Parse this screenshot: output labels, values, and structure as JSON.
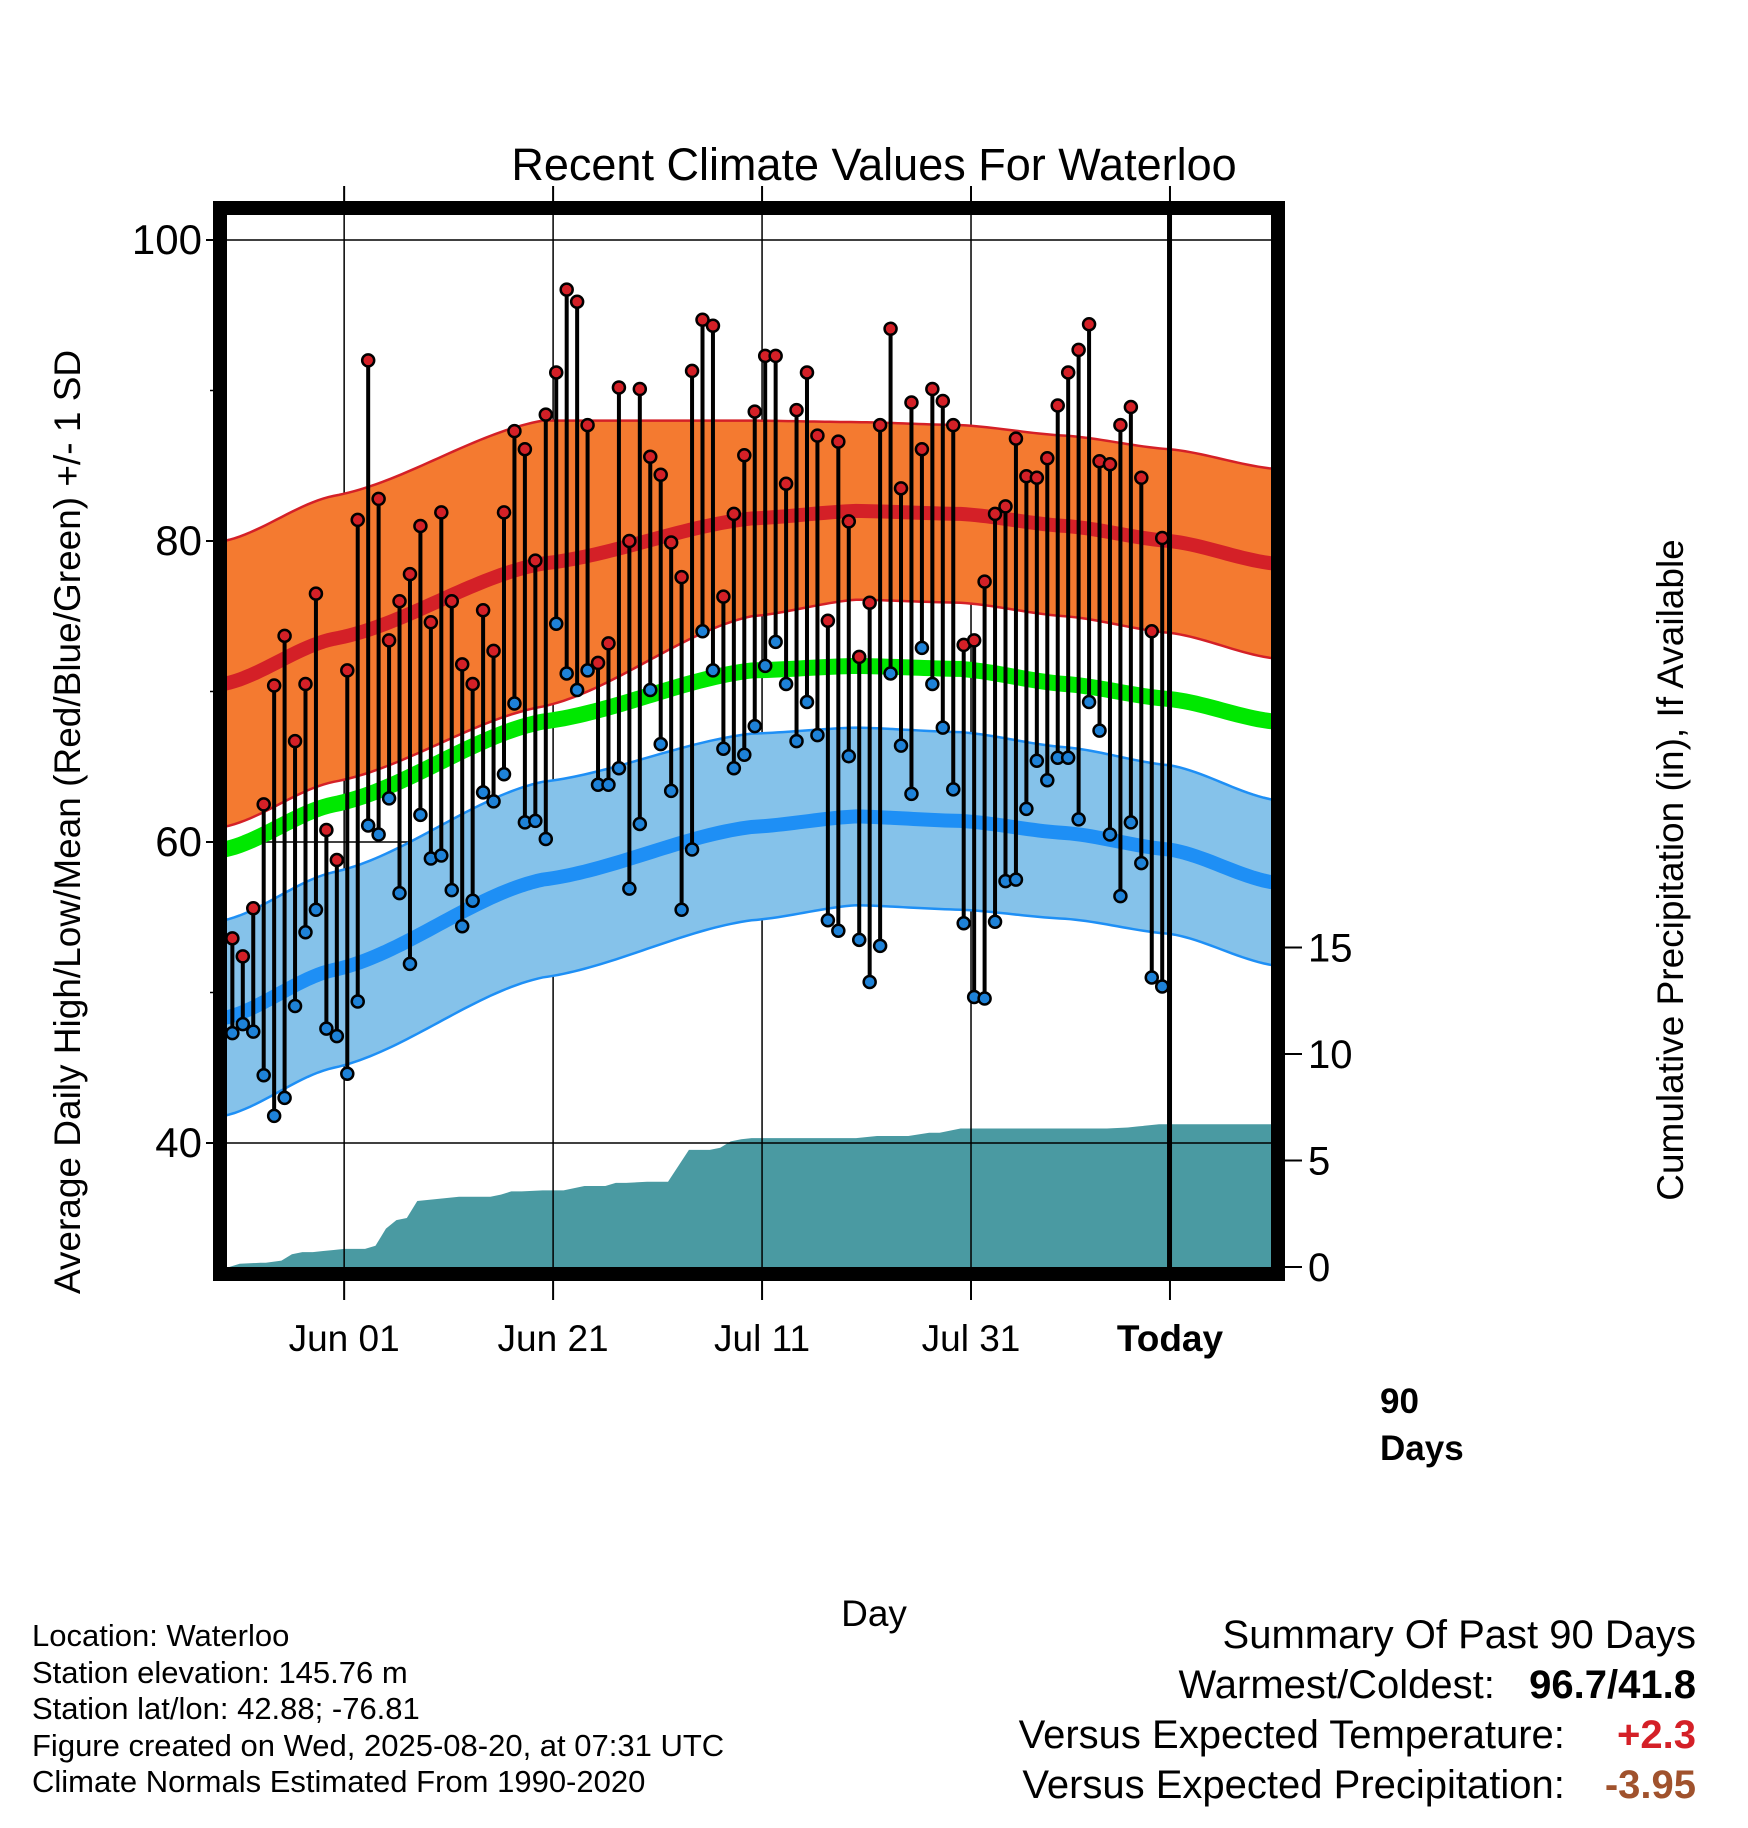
{
  "title": "Recent Climate Values For Waterloo",
  "y_left_label": "Average Daily High/Low/Mean (Red/Blue/Green) +/- 1 SD",
  "y_right_label": "Cumulative Precipitation (in), If Available",
  "x_label": "Day",
  "window_label": [
    "90",
    "Days"
  ],
  "info": {
    "location": "Location: Waterloo",
    "elevation": "Station elevation: 145.76 m",
    "latlon": "Station lat/lon: 42.88; -76.81",
    "created": "Figure created on Wed, 2025-08-20, at 07:31 UTC",
    "normals": "Climate Normals Estimated From 1990-2020"
  },
  "summary": {
    "heading": "Summary Of Past 90 Days",
    "warmest_label": "Warmest/Coldest:",
    "warmest_value": "96.7/41.8",
    "temp_label": "Versus Expected Temperature:",
    "temp_value": "+2.3",
    "precip_label": "Versus Expected Precipitation:",
    "precip_value": "-3.95"
  },
  "colors": {
    "high_band": "#f47a30",
    "high_line": "#d42027",
    "low_band": "#85c2ea",
    "low_line": "#1e8ff5",
    "mean_line": "#00e800",
    "precip": "#4a9aa2",
    "high_dot": "#d42027",
    "low_dot": "#1e82d8"
  },
  "chart_data": {
    "type": "line",
    "x_start_day_offset": -10.5,
    "xlim": [
      -10.5,
      90
    ],
    "ylim_left": [
      32,
      100
    ],
    "yticks_left": [
      40,
      60,
      80,
      100
    ],
    "yticks_right": [
      0,
      5,
      10,
      15
    ],
    "xticks": [
      {
        "day": 1,
        "label": "Jun 01"
      },
      {
        "day": 21,
        "label": "Jun 21"
      },
      {
        "day": 41,
        "label": "Jul 11"
      },
      {
        "day": 61,
        "label": "Jul 31"
      },
      {
        "day": 81,
        "label": "Today",
        "bold": true
      }
    ],
    "grid": true,
    "normal_high": {
      "x": [
        -10.5,
        0,
        20,
        40,
        50,
        60,
        70,
        80,
        90
      ],
      "mean": [
        70.5,
        73.5,
        78.5,
        81.5,
        82,
        81.8,
        81,
        80,
        78.5
      ],
      "sd": [
        9.5,
        9.5,
        9.5,
        6.5,
        5.9,
        5.9,
        6,
        6.1,
        6.3
      ]
    },
    "normal_low": {
      "x": [
        -10.5,
        0,
        20,
        40,
        50,
        60,
        70,
        80,
        90
      ],
      "mean": [
        48.3,
        51.5,
        57.5,
        61,
        61.7,
        61.4,
        60.6,
        59.5,
        57.3
      ],
      "sd": [
        6.5,
        6.5,
        6.5,
        6.2,
        5.9,
        5.9,
        5.7,
        5.6,
        5.5
      ]
    },
    "normal_mean": {
      "x": [
        -10.5,
        0,
        20,
        40,
        50,
        60,
        70,
        80,
        90
      ],
      "values": [
        59.5,
        62.5,
        68,
        71.4,
        71.7,
        71.5,
        70.5,
        69.5,
        68
      ]
    },
    "daily_high": [
      53.6,
      52.4,
      55.6,
      62.5,
      70.4,
      73.7,
      66.7,
      70.5,
      76.5,
      60.8,
      58.8,
      71.4,
      81.4,
      92,
      82.8,
      73.4,
      76,
      77.8,
      81,
      74.6,
      81.9,
      76,
      71.8,
      70.5,
      75.4,
      72.7,
      81.9,
      87.3,
      86.1,
      78.7,
      88.4,
      91.2,
      96.7,
      95.9,
      87.7,
      71.9,
      73.2,
      90.2,
      80,
      90.1,
      85.6,
      84.4,
      79.9,
      77.6,
      91.3,
      94.7,
      94.3,
      76.3,
      81.8,
      85.7,
      88.6,
      92.3,
      92.3,
      83.8,
      88.7,
      91.2,
      87,
      74.7,
      86.6,
      81.3,
      72.3,
      75.9,
      87.7,
      94.1,
      83.5,
      89.2,
      86.1,
      90.1,
      89.3,
      87.7,
      73.1,
      73.4,
      77.3,
      81.8,
      82.3,
      86.8,
      84.3,
      84.2,
      85.5,
      89,
      91.2,
      92.7,
      94.4,
      85.3,
      85.1,
      87.7,
      88.9,
      84.2,
      74,
      80.2
    ],
    "daily_low": [
      47.3,
      47.9,
      47.4,
      44.5,
      41.8,
      43,
      49.1,
      54,
      55.5,
      47.6,
      47.1,
      44.6,
      49.4,
      61.1,
      60.5,
      62.9,
      56.6,
      51.9,
      61.8,
      58.9,
      59.1,
      56.8,
      54.4,
      56.1,
      63.3,
      62.7,
      64.5,
      69.2,
      61.3,
      61.4,
      60.2,
      74.5,
      71.2,
      70.1,
      71.4,
      63.8,
      63.8,
      64.9,
      56.9,
      61.2,
      70.1,
      66.5,
      63.4,
      55.5,
      59.5,
      74,
      71.4,
      66.2,
      64.9,
      65.8,
      67.7,
      71.7,
      73.3,
      70.5,
      66.7,
      69.3,
      67.1,
      54.8,
      54.1,
      65.7,
      53.5,
      50.7,
      53.1,
      71.2,
      66.4,
      63.2,
      72.9,
      70.5,
      67.6,
      63.5,
      54.6,
      49.7,
      49.6,
      54.7,
      57.4,
      57.5,
      62.2,
      65.4,
      64.1,
      65.6,
      65.6,
      61.5,
      69.3,
      67.4,
      60.5,
      56.4,
      61.3,
      58.6,
      51,
      50.4
    ],
    "precip_cumulative": {
      "x": [
        -10.5,
        -10,
        -9,
        -7,
        -6.5,
        -5,
        -4,
        -3,
        -2,
        -1,
        0,
        1,
        2,
        3,
        4,
        5,
        6,
        7,
        8,
        10,
        12,
        15,
        16,
        17,
        18,
        20,
        22,
        24,
        26,
        27,
        28,
        30,
        32,
        34,
        36,
        37,
        38,
        39,
        40,
        41,
        42,
        43,
        44,
        48,
        50,
        52,
        55,
        57,
        58,
        60,
        61,
        63,
        65,
        70,
        74,
        76,
        77,
        79,
        90
      ],
      "values": [
        0,
        0,
        0.15,
        0.2,
        0.2,
        0.3,
        0.6,
        0.7,
        0.7,
        0.75,
        0.8,
        0.85,
        0.85,
        0.85,
        1,
        1.8,
        2.2,
        2.3,
        3.1,
        3.2,
        3.3,
        3.3,
        3.4,
        3.55,
        3.55,
        3.6,
        3.6,
        3.8,
        3.8,
        3.95,
        3.95,
        4,
        4,
        5.5,
        5.5,
        5.6,
        5.9,
        6,
        6.05,
        6.05,
        6.05,
        6.05,
        6.05,
        6.05,
        6.05,
        6.15,
        6.15,
        6.3,
        6.3,
        6.5,
        6.5,
        6.5,
        6.5,
        6.5,
        6.5,
        6.55,
        6.6,
        6.7,
        6.7
      ]
    }
  }
}
